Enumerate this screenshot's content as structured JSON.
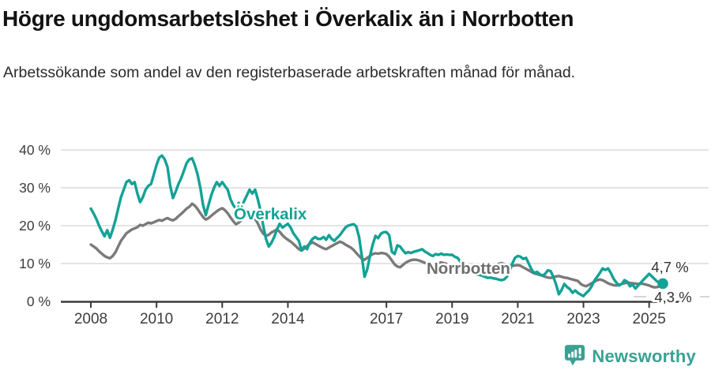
{
  "header": {
    "title": "Högre ungdomsarbetslöshet i Överkalix än i Norrbotten",
    "subtitle": "Arbetssökande som andel av den registerbaserade arbetskraften månad för månad."
  },
  "chart_data": {
    "type": "line",
    "title": "Högre ungdomsarbetslöshet i Överkalix än i Norrbotten",
    "subtitle": "Arbetssökande som andel av den registerbaserade arbetskraften månad för månad.",
    "x_unit": "month",
    "x_start": "2008-01",
    "x_end": "2025-06",
    "ylim": [
      0,
      40
    ],
    "grid": "horizontal",
    "y_ticks": [
      {
        "value": 0,
        "label": "0 %"
      },
      {
        "value": 10,
        "label": "10 %"
      },
      {
        "value": 20,
        "label": "20 %"
      },
      {
        "value": 30,
        "label": "30 %"
      },
      {
        "value": 40,
        "label": "40 %"
      }
    ],
    "x_ticks": [
      {
        "value": 2008,
        "label": "2008"
      },
      {
        "value": 2010,
        "label": "2010"
      },
      {
        "value": 2012,
        "label": "2012"
      },
      {
        "value": 2014,
        "label": "2014"
      },
      {
        "value": 2017,
        "label": "2017"
      },
      {
        "value": 2019,
        "label": "2019"
      },
      {
        "value": 2021,
        "label": "2021"
      },
      {
        "value": 2023,
        "label": "2023"
      },
      {
        "value": 2025,
        "label": "2025"
      }
    ],
    "series": [
      {
        "name": "Norrbotten",
        "color": "#7a7a7a",
        "label_color": "#6e6e6e",
        "end_value": 4.3,
        "end_label": "4,3 %",
        "values": [
          15,
          14.5,
          14,
          13.2,
          12.6,
          12,
          11.6,
          11.4,
          12,
          13,
          14.5,
          16,
          17,
          18,
          18.5,
          19,
          19.3,
          19.6,
          20.2,
          20,
          20.4,
          20.8,
          20.6,
          20.9,
          21.2,
          21.5,
          21.3,
          21.7,
          22,
          21.6,
          21.4,
          21.8,
          22.5,
          23.1,
          23.8,
          24.5,
          25,
          25.8,
          25.3,
          24.4,
          23.3,
          22.3,
          21.6,
          22,
          22.6,
          23.2,
          23.8,
          24.3,
          24.6,
          24.1,
          23.3,
          22.2,
          21.2,
          20.4,
          20.8,
          21.4,
          22,
          22.5,
          23.1,
          22.6,
          21.8,
          20.6,
          19,
          17.9,
          17.3,
          17.6,
          18.2,
          18.6,
          19,
          18.4,
          17.5,
          16.8,
          16.3,
          15.8,
          15.2,
          14.5,
          13.8,
          13.4,
          14,
          14.6,
          15.2,
          15.6,
          15.2,
          14.8,
          14.4,
          14,
          13.8,
          14.2,
          14.6,
          15,
          15.4,
          15.8,
          15.5,
          15,
          14.6,
          14.2,
          13.6,
          12.8,
          12,
          11.3,
          11,
          11.5,
          12,
          12.5,
          12.7,
          12.6,
          12.8,
          12.7,
          12.5,
          11.8,
          10.8,
          9.8,
          9.2,
          9,
          9.6,
          10.2,
          10.6,
          10.9,
          11,
          11,
          10.8,
          10.5,
          10.2,
          10,
          9.8,
          9.6,
          9.9,
          10.1,
          10.3,
          10.1,
          9.9,
          9.6,
          9.3,
          9,
          8.8,
          8.5,
          8.2,
          8,
          8.3,
          8.1,
          7.9,
          7.7,
          7.6,
          7.8,
          8,
          8.2,
          8.6,
          9.2,
          9.6,
          9.9,
          10.1,
          9.9,
          9.7,
          9.5,
          9.4,
          9.5,
          9.6,
          9.4,
          9,
          8.6,
          8.2,
          7.8,
          7.4,
          7.2,
          7,
          6.8,
          6.5,
          6.3,
          6.2,
          6.4,
          6.6,
          6.7,
          6.5,
          6.3,
          6.2,
          6,
          5.8,
          5.6,
          5.4,
          4.6,
          4.2,
          4,
          4.4,
          4.8,
          5.2,
          5.6,
          5.8,
          5.6,
          5.2,
          4.8,
          4.5,
          4.3,
          4.2,
          4.4,
          4.6,
          4.8,
          5,
          4.9,
          4.8,
          4.7,
          4.6,
          4.7,
          4.6,
          4.4,
          4.2,
          3.9,
          3.7,
          3.8,
          4,
          4.3
        ]
      },
      {
        "name": "Överkalix",
        "color": "#12A296",
        "label_color": "#12A296",
        "end_value": 4.7,
        "end_label": "4,7 %",
        "values": [
          24.5,
          23.2,
          21.8,
          20,
          18.5,
          17.2,
          18.8,
          16.8,
          19,
          21.5,
          24.5,
          27.5,
          29.5,
          31.5,
          32,
          31,
          31.5,
          28.5,
          26.2,
          27.5,
          29.5,
          30.5,
          31,
          33.5,
          36,
          38,
          38.5,
          37.5,
          35.5,
          30.5,
          27.3,
          29,
          31,
          32.5,
          34.5,
          36.5,
          37.5,
          37.8,
          36,
          33.5,
          30,
          25.5,
          22.8,
          25.5,
          28,
          30,
          31.5,
          30.5,
          31.5,
          30.5,
          29.5,
          27,
          25.5,
          24.5,
          26,
          24.5,
          26.5,
          28,
          29.5,
          28.5,
          29.5,
          27,
          24,
          20,
          16.5,
          14.5,
          15.5,
          17,
          19,
          20.5,
          19.5,
          20,
          20.5,
          19.5,
          18,
          17,
          16,
          13.5,
          14.5,
          13.8,
          15.5,
          16.5,
          17,
          16.5,
          16.5,
          17,
          16.3,
          17.5,
          16.5,
          16,
          16.8,
          17.5,
          18.5,
          19.5,
          20,
          20.2,
          20.4,
          19.8,
          17,
          12,
          6.5,
          8.5,
          12,
          15,
          17.3,
          16.7,
          17.9,
          18.3,
          18.3,
          17.5,
          13.1,
          12.5,
          14.8,
          14.5,
          13.5,
          12.7,
          13,
          12.8,
          13.1,
          13.3,
          13.5,
          13.8,
          13.2,
          12.8,
          12.3,
          12,
          12.5,
          12.3,
          12.6,
          12.3,
          12.4,
          12.3,
          12.3,
          11.8,
          11.5,
          10.5,
          9.5,
          8.5,
          8.1,
          7.8,
          7.5,
          7.1,
          7,
          6.8,
          6.5,
          6.2,
          6.3,
          6.1,
          6,
          5.8,
          5.6,
          5.8,
          6.5,
          8,
          10,
          11.5,
          12,
          11.8,
          11.2,
          11.5,
          10,
          8.5,
          7.5,
          7.8,
          7.2,
          6.8,
          7.3,
          8.2,
          8,
          6.5,
          4.5,
          1.9,
          3,
          4.6,
          3.8,
          3.3,
          2.3,
          2.9,
          2.2,
          1.8,
          1.4,
          2.2,
          2.9,
          4,
          5.5,
          6.5,
          7.5,
          8.7,
          8.3,
          8.7,
          7.5,
          6,
          5,
          4.2,
          4.6,
          5.6,
          5.2,
          4,
          4.4,
          3.4,
          4.2,
          5,
          5.8,
          6.5,
          7.3,
          6.6,
          5.9,
          5.2,
          4.9,
          4.7
        ]
      }
    ],
    "series_labels": [
      {
        "text": "Överkalix",
        "color": "#12A296"
      },
      {
        "text": "Norrbotten",
        "color": "#6e6e6e"
      }
    ],
    "end_labels": [
      {
        "text": "4,7 %",
        "color": "#333333"
      },
      {
        "text": "4,3 %",
        "color": "#333333"
      }
    ],
    "legend_position": "inline",
    "colors": {
      "accent_teal": "#12A296",
      "line_gray": "#7a7a7a",
      "gridline": "#dbdbdb",
      "axis": "#3a3a3a",
      "tick_text": "#3c3c3c"
    }
  },
  "footer": {
    "brand": "Newsworthy",
    "logo_icon": "newsworthy-logo",
    "brand_color": "#3AA193"
  }
}
